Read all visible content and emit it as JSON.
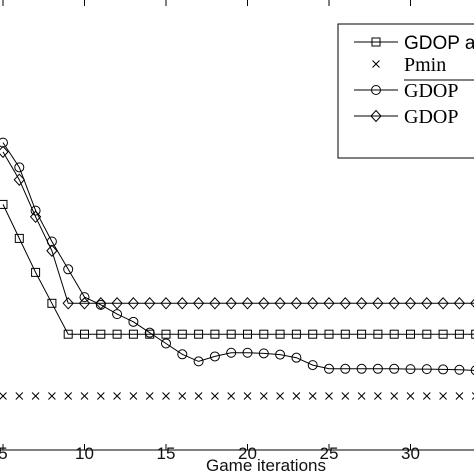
{
  "chart_data": {
    "type": "line",
    "title": "",
    "xlabel": "Game iterations",
    "ylabel": "",
    "xlim": [
      4.6,
      34
    ],
    "ylim": [
      0,
      12
    ],
    "xticks": [
      5,
      10,
      15,
      20,
      25,
      30
    ],
    "grid": false,
    "legend_position": "top-right",
    "series": [
      {
        "name": "GDOP a",
        "marker": "square",
        "x": [
          5,
          6,
          7,
          8,
          9,
          10,
          11,
          12,
          13,
          14,
          15,
          16,
          17,
          18,
          19,
          20,
          21,
          22,
          23,
          24,
          25,
          26,
          27,
          28,
          29,
          30,
          31,
          32,
          33,
          34
        ],
        "values": [
          6.2,
          5.1,
          4.0,
          3.0,
          2.0,
          2.0,
          2.0,
          2.0,
          2.0,
          2.0,
          2.0,
          2.0,
          2.0,
          2.0,
          2.0,
          2.0,
          2.0,
          2.0,
          2.0,
          2.0,
          2.0,
          2.0,
          2.0,
          2.0,
          2.0,
          2.0,
          2.0,
          2.0,
          2.0,
          2.0
        ]
      },
      {
        "name": "Pmin",
        "marker": "x",
        "x": [
          5,
          6,
          7,
          8,
          9,
          10,
          11,
          12,
          13,
          14,
          15,
          16,
          17,
          18,
          19,
          20,
          21,
          22,
          23,
          24,
          25,
          26,
          27,
          28,
          29,
          30,
          31,
          32,
          33,
          34
        ],
        "values": [
          0,
          0,
          0,
          0,
          0,
          0,
          0,
          0,
          0,
          0,
          0,
          0,
          0,
          0,
          0,
          0,
          0,
          0,
          0,
          0,
          0,
          0,
          0,
          0,
          0,
          0,
          0,
          0,
          0,
          0
        ]
      },
      {
        "name": "GDOP",
        "marker": "circle",
        "x": [
          5,
          6,
          7,
          8,
          9,
          10,
          11,
          12,
          13,
          14,
          15,
          16,
          17,
          18,
          19,
          20,
          21,
          22,
          23,
          24,
          25,
          26,
          27,
          28,
          29,
          30,
          31,
          32,
          33,
          34
        ],
        "values": [
          8.2,
          7.4,
          6.0,
          5.0,
          4.1,
          3.2,
          2.95,
          2.65,
          2.4,
          2.05,
          1.7,
          1.35,
          1.12,
          1.28,
          1.4,
          1.4,
          1.38,
          1.34,
          1.24,
          1.0,
          0.88,
          0.88,
          0.88,
          0.88,
          0.88,
          0.87,
          0.87,
          0.86,
          0.85,
          0.83
        ]
      },
      {
        "name": "GDOP",
        "marker": "diamond",
        "x": [
          5,
          6,
          7,
          8,
          9,
          10,
          11,
          12,
          13,
          14,
          15,
          16,
          17,
          18,
          19,
          20,
          21,
          22,
          23,
          24,
          25,
          26,
          27,
          28,
          29,
          30,
          31,
          32,
          33,
          34
        ],
        "values": [
          7.9,
          7.0,
          5.8,
          4.7,
          3.0,
          3.0,
          3.0,
          3.0,
          3.0,
          3.0,
          3.0,
          3.0,
          3.0,
          3.0,
          3.0,
          3.0,
          3.0,
          3.0,
          3.0,
          3.0,
          3.0,
          3.0,
          3.0,
          3.0,
          3.0,
          3.0,
          3.0,
          3.0,
          3.0,
          3.0
        ]
      }
    ]
  },
  "legend": {
    "items": [
      {
        "label": "GDOP a",
        "marker": "square"
      },
      {
        "label": "Pmin",
        "marker": "x"
      },
      {
        "label": "GDOP",
        "marker": "circle",
        "overline": true
      },
      {
        "label": "GDOP",
        "marker": "diamond"
      }
    ]
  }
}
